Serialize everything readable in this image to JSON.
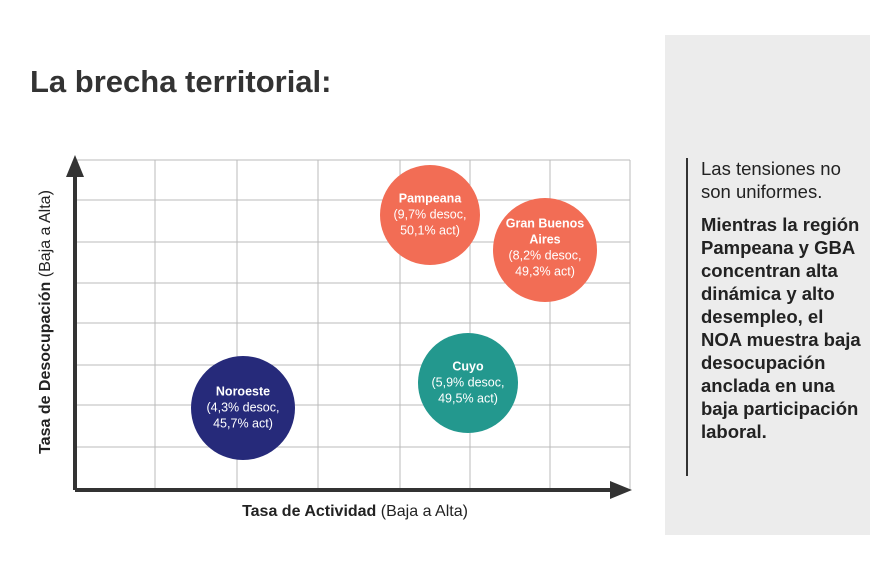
{
  "title": "La brecha territorial:",
  "x_axis": {
    "label_bold": "Tasa de Actividad",
    "label_rest": "(Baja a Alta)"
  },
  "y_axis": {
    "label_bold": "Tasa de Desocupación",
    "label_rest": "(Baja a Alta)"
  },
  "bubbles": [
    {
      "name": [
        "Pampeana"
      ],
      "lines": [
        "(9,7% desoc,",
        "50,1% act)"
      ],
      "color": "#f26d55"
    },
    {
      "name": [
        "Gran Buenos",
        "Aires"
      ],
      "lines": [
        "(8,2% desoc,",
        "49,3% act)"
      ],
      "color": "#f26d55"
    },
    {
      "name": [
        "Cuyo"
      ],
      "lines": [
        "(5,9% desoc,",
        "49,5% act)"
      ],
      "color": "#23988e"
    },
    {
      "name": [
        "Noroeste"
      ],
      "lines": [
        "(4,3% desoc,",
        "45,7% act)"
      ],
      "color": "#262a7a"
    }
  ],
  "panel": {
    "intro": "Las tensiones no son uniformes.",
    "body": "Mientras la región Pampeana y GBA concentran alta dinámica y alto desempleo, el NOA muestra baja desocupación anclada en una baja participación laboral."
  }
}
